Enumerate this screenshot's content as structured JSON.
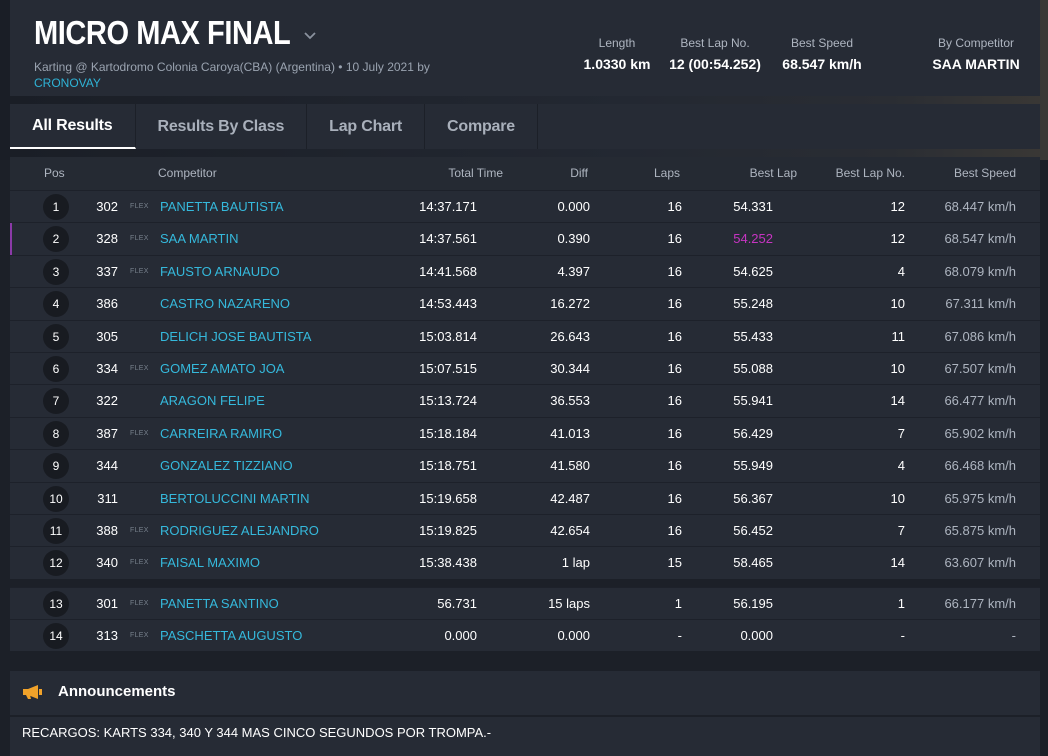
{
  "header": {
    "title": "MICRO MAX FINAL",
    "subtitle": "Karting @ Kartodromo Colonia Caroya(CBA) (Argentina) • 10 July 2021 by",
    "provider_link": "CRONOVAY",
    "stats": [
      {
        "label": "Length",
        "value": "1.0330 km"
      },
      {
        "label": "Best Lap No.",
        "value": "12 (00:54.252)"
      },
      {
        "label": "Best Speed",
        "value": "68.547 km/h"
      },
      {
        "label": "By Competitor",
        "value": "SAA MARTIN"
      }
    ]
  },
  "tabs": [
    "All Results",
    "Results By Class",
    "Lap Chart",
    "Compare"
  ],
  "table": {
    "columns": [
      "Pos",
      "Competitor",
      "Total Time",
      "Diff",
      "Laps",
      "Best Lap",
      "Best Lap No.",
      "Best Speed"
    ],
    "rows": [
      {
        "pos": "1",
        "no": "302",
        "flex": "FLEX",
        "name": "PANETTA BAUTISTA",
        "total": "14:37.171",
        "diff": "0.000",
        "laps": "16",
        "best": "54.331",
        "bestno": "12",
        "speed": "68.447 km/h"
      },
      {
        "pos": "2",
        "no": "328",
        "flex": "FLEX",
        "name": "SAA MARTIN",
        "total": "14:37.561",
        "diff": "0.390",
        "laps": "16",
        "best": "54.252",
        "bestno": "12",
        "speed": "68.547 km/h"
      },
      {
        "pos": "3",
        "no": "337",
        "flex": "FLEX",
        "name": "FAUSTO ARNAUDO",
        "total": "14:41.568",
        "diff": "4.397",
        "laps": "16",
        "best": "54.625",
        "bestno": "4",
        "speed": "68.079 km/h"
      },
      {
        "pos": "4",
        "no": "386",
        "flex": "",
        "name": "CASTRO NAZARENO",
        "total": "14:53.443",
        "diff": "16.272",
        "laps": "16",
        "best": "55.248",
        "bestno": "10",
        "speed": "67.311 km/h"
      },
      {
        "pos": "5",
        "no": "305",
        "flex": "",
        "name": "DELICH JOSE BAUTISTA",
        "total": "15:03.814",
        "diff": "26.643",
        "laps": "16",
        "best": "55.433",
        "bestno": "11",
        "speed": "67.086 km/h"
      },
      {
        "pos": "6",
        "no": "334",
        "flex": "FLEX",
        "name": "GOMEZ AMATO JOA",
        "total": "15:07.515",
        "diff": "30.344",
        "laps": "16",
        "best": "55.088",
        "bestno": "10",
        "speed": "67.507 km/h"
      },
      {
        "pos": "7",
        "no": "322",
        "flex": "",
        "name": "ARAGON FELIPE",
        "total": "15:13.724",
        "diff": "36.553",
        "laps": "16",
        "best": "55.941",
        "bestno": "14",
        "speed": "66.477 km/h"
      },
      {
        "pos": "8",
        "no": "387",
        "flex": "FLEX",
        "name": "CARREIRA RAMIRO",
        "total": "15:18.184",
        "diff": "41.013",
        "laps": "16",
        "best": "56.429",
        "bestno": "7",
        "speed": "65.902 km/h"
      },
      {
        "pos": "9",
        "no": "344",
        "flex": "",
        "name": "GONZALEZ TIZZIANO",
        "total": "15:18.751",
        "diff": "41.580",
        "laps": "16",
        "best": "55.949",
        "bestno": "4",
        "speed": "66.468 km/h"
      },
      {
        "pos": "10",
        "no": "311",
        "flex": "",
        "name": "BERTOLUCCINI MARTIN",
        "total": "15:19.658",
        "diff": "42.487",
        "laps": "16",
        "best": "56.367",
        "bestno": "10",
        "speed": "65.975 km/h"
      },
      {
        "pos": "11",
        "no": "388",
        "flex": "FLEX",
        "name": "RODRIGUEZ ALEJANDRO",
        "total": "15:19.825",
        "diff": "42.654",
        "laps": "16",
        "best": "56.452",
        "bestno": "7",
        "speed": "65.875 km/h"
      },
      {
        "pos": "12",
        "no": "340",
        "flex": "FLEX",
        "name": "FAISAL MAXIMO",
        "total": "15:38.438",
        "diff": "1 lap",
        "laps": "15",
        "best": "58.465",
        "bestno": "14",
        "speed": "63.607 km/h"
      }
    ],
    "rows2": [
      {
        "pos": "13",
        "no": "301",
        "flex": "FLEX",
        "name": "PANETTA SANTINO",
        "total": "56.731",
        "diff": "15 laps",
        "laps": "1",
        "best": "56.195",
        "bestno": "1",
        "speed": "66.177 km/h"
      },
      {
        "pos": "14",
        "no": "313",
        "flex": "FLEX",
        "name": "PASCHETTA AUGUSTO",
        "total": "0.000",
        "diff": "0.000",
        "laps": "-",
        "best": "0.000",
        "bestno": "-",
        "speed": "-"
      }
    ],
    "highlight_color": "#c634c2"
  },
  "announcements": {
    "title": "Announcements",
    "text": "RECARGOS: KARTS 334, 340 Y 344 MAS CINCO SEGUNDOS POR TROMPA.-"
  }
}
